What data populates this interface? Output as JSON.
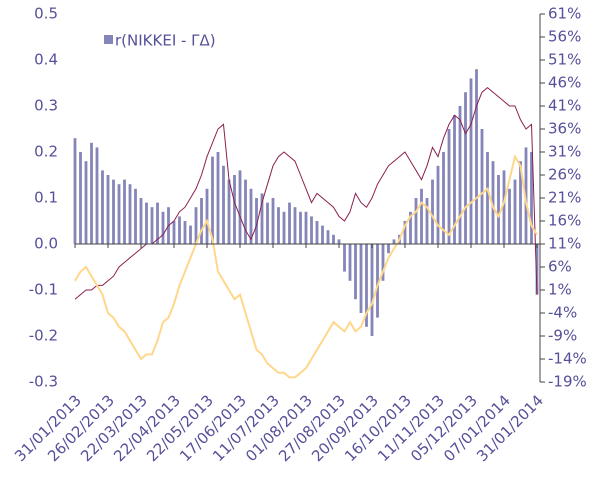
{
  "chart_data": {
    "type": "bar",
    "categories": [
      "31/01/2013",
      null,
      null,
      null,
      null,
      null,
      "26/02/2013",
      null,
      null,
      null,
      null,
      null,
      "22/03/2013",
      null,
      null,
      null,
      null,
      null,
      "22/04/2013",
      null,
      null,
      null,
      null,
      null,
      "22/05/2013",
      null,
      null,
      null,
      null,
      null,
      "17/06/2013",
      null,
      null,
      null,
      null,
      null,
      "11/07/2013",
      null,
      null,
      null,
      null,
      null,
      "01/08/2013",
      null,
      null,
      null,
      null,
      null,
      "27/08/2013",
      null,
      null,
      null,
      null,
      null,
      "20/09/2013",
      null,
      null,
      null,
      null,
      null,
      "16/10/2013",
      null,
      null,
      null,
      null,
      null,
      "11/11/2013",
      null,
      null,
      null,
      null,
      null,
      "05/12/2013",
      null,
      null,
      null,
      null,
      null,
      "07/01/2014",
      null,
      null,
      null,
      null,
      null,
      "31/01/2014"
    ],
    "series": [
      {
        "name": "r(NIKKEI - ΓΔ)",
        "type": "bar",
        "color": "#8585ba",
        "values": [
          0.23,
          0.2,
          0.18,
          0.22,
          0.21,
          0.16,
          0.15,
          0.14,
          0.13,
          0.14,
          0.13,
          0.12,
          0.1,
          0.09,
          0.08,
          0.09,
          0.07,
          0.08,
          0.05,
          0.06,
          0.05,
          0.04,
          0.08,
          0.1,
          0.12,
          0.19,
          0.2,
          0.17,
          0.14,
          0.15,
          0.16,
          0.14,
          0.12,
          0.1,
          0.11,
          0.09,
          0.1,
          0.08,
          0.07,
          0.09,
          0.08,
          0.07,
          0.07,
          0.06,
          0.05,
          0.04,
          0.03,
          0.02,
          0.01,
          -0.06,
          -0.08,
          -0.12,
          -0.15,
          -0.18,
          -0.2,
          -0.16,
          -0.08,
          -0.02,
          0.01,
          0.02,
          0.05,
          0.07,
          0.1,
          0.12,
          0.1,
          0.14,
          0.17,
          0.2,
          0.25,
          0.28,
          0.3,
          0.33,
          0.36,
          0.38,
          0.25,
          0.2,
          0.18,
          0.15,
          0.16,
          0.12,
          0.14,
          0.18,
          0.21,
          0.2,
          -0.11
        ]
      },
      {
        "type": "line",
        "axis": "y2",
        "color": "#8b1f4f",
        "values": [
          -1,
          0,
          1,
          1,
          2,
          2,
          3,
          4,
          6,
          7,
          8,
          9,
          10,
          11,
          11,
          12,
          13,
          15,
          16,
          18,
          19,
          21,
          23,
          26,
          30,
          33,
          36,
          37,
          25,
          20,
          17,
          14,
          12,
          15,
          20,
          24,
          28,
          30,
          31,
          30,
          29,
          26,
          23,
          20,
          22,
          21,
          20,
          19,
          17,
          16,
          18,
          22,
          20,
          19,
          21,
          24,
          26,
          28,
          29,
          30,
          31,
          29,
          27,
          25,
          28,
          32,
          30,
          34,
          37,
          39,
          38,
          35,
          37,
          41,
          44,
          45,
          44,
          43,
          42,
          41,
          41,
          38,
          36,
          37,
          0
        ]
      },
      {
        "type": "line",
        "axis": "y2",
        "color": "#ffd78a",
        "values": [
          3,
          5,
          6,
          4,
          2,
          0,
          -4,
          -5,
          -7,
          -8,
          -10,
          -12,
          -14,
          -13,
          -13,
          -10,
          -6,
          -5,
          -2,
          2,
          5,
          8,
          11,
          14,
          16,
          12,
          5,
          3,
          1,
          -1,
          0,
          -4,
          -8,
          -12,
          -13,
          -15,
          -16,
          -17,
          -17,
          -18,
          -18,
          -17,
          -16,
          -14,
          -12,
          -10,
          -8,
          -6,
          -7,
          -8,
          -6,
          -8,
          -7,
          -4,
          -2,
          2,
          5,
          8,
          10,
          12,
          15,
          17,
          18,
          20,
          19,
          17,
          15,
          14,
          13,
          15,
          17,
          19,
          20,
          21,
          22,
          23,
          19,
          17,
          20,
          25,
          30,
          28,
          20,
          15,
          13
        ]
      }
    ],
    "ylim": [
      -0.3,
      0.5
    ],
    "yticks": [
      -0.3,
      -0.2,
      -0.1,
      {
        "value": 0,
        "label": "0.0"
      },
      0.1,
      0.2,
      0.3,
      0.4,
      0.5
    ],
    "y2lim": [
      -19,
      61
    ],
    "y2ticks": [
      {
        "value": -19,
        "label": "-19%"
      },
      {
        "value": -14,
        "label": "-14%"
      },
      {
        "value": -9,
        "label": "-9%"
      },
      {
        "value": -4,
        "label": "-4%"
      },
      {
        "value": 1,
        "label": "1%"
      },
      {
        "value": 6,
        "label": "6%"
      },
      {
        "value": 11,
        "label": "11%"
      },
      {
        "value": 16,
        "label": "16%"
      },
      {
        "value": 21,
        "label": "21%"
      },
      {
        "value": 26,
        "label": "26%"
      },
      {
        "value": 31,
        "label": "31%"
      },
      {
        "value": 36,
        "label": "36%"
      },
      {
        "value": 41,
        "label": "41%"
      },
      {
        "value": 46,
        "label": "46%"
      },
      {
        "value": 51,
        "label": "51%"
      },
      {
        "value": 56,
        "label": "56%"
      },
      {
        "value": 61,
        "label": "61%"
      }
    ],
    "legend": "top-left"
  }
}
